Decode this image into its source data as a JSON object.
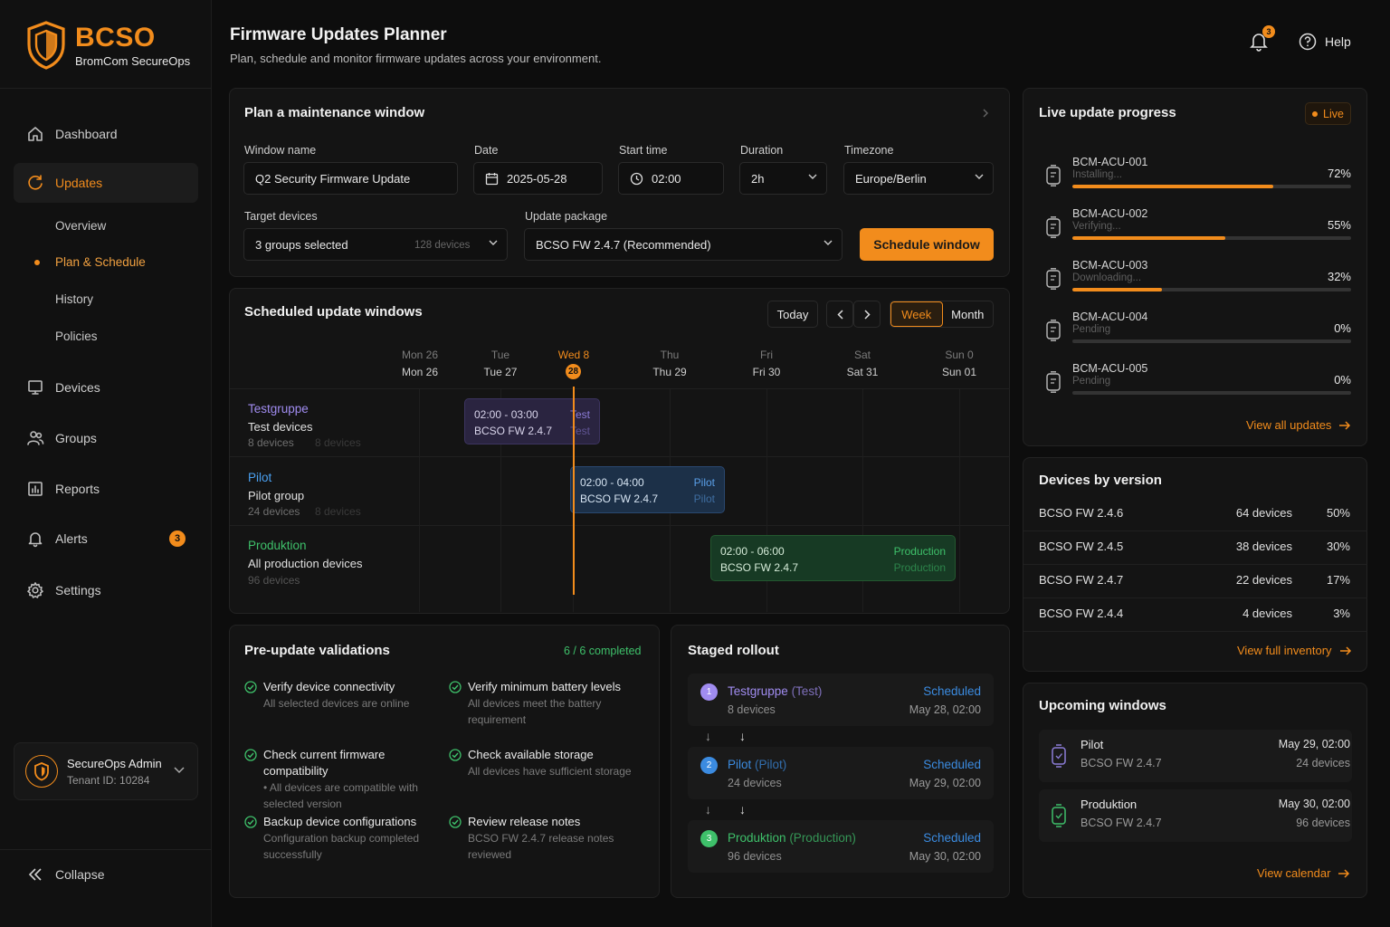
{
  "brand": {
    "name": "BCSO",
    "subtitle": "BromCom SecureOps"
  },
  "nav": {
    "dashboard": "Dashboard",
    "updates": "Updates",
    "sub_overview": "Overview",
    "sub_plan": "Plan & Schedule",
    "sub_history": "History",
    "sub_policies": "Policies",
    "devices": "Devices",
    "groups": "Groups",
    "reports": "Reports",
    "alerts": "Alerts",
    "alerts_badge": "3",
    "settings": "Settings",
    "collapse": "Collapse"
  },
  "user": {
    "name": "SecureOps Admin",
    "tenant": "Tenant ID: 10284"
  },
  "header": {
    "title": "Firmware Updates Planner",
    "subtitle": "Plan, schedule and monitor firmware updates across your environment.",
    "notif_count": "3",
    "help": "Help"
  },
  "plan": {
    "title": "Plan a maintenance window",
    "window_name_label": "Window name",
    "window_name_value": "Q2 Security Firmware Update",
    "date_label": "Date",
    "date_value": "2025-05-28",
    "start_label": "Start time",
    "start_value": "02:00",
    "duration_label": "Duration",
    "duration_value": "2h",
    "tz_label": "Timezone",
    "tz_value": "Europe/Berlin",
    "targets_label": "Target devices",
    "targets_value": "3 groups selected",
    "targets_count": "128 devices",
    "package_label": "Update package",
    "package_value": "BCSO FW 2.4.7 (Recommended)",
    "schedule_button": "Schedule window"
  },
  "calendar": {
    "title": "Scheduled update windows",
    "today": "Today",
    "view_week": "Week",
    "view_month": "Month",
    "days": [
      {
        "top": "Mon 26",
        "bottom": "Mon 26"
      },
      {
        "top": "Tue",
        "bottom": "Tue 27"
      },
      {
        "top": "Wed 8",
        "bottom": "28"
      },
      {
        "top": "Thu",
        "bottom": "Thu 29"
      },
      {
        "top": "Fri",
        "bottom": "Fri 30"
      },
      {
        "top": "Sat",
        "bottom": "Sat 31"
      },
      {
        "top": "Sun 0",
        "bottom": "Sun 01"
      }
    ],
    "groups": [
      {
        "name": "Testgruppe",
        "desc": "Test devices",
        "count": "8 devices",
        "ghost": "8 devices",
        "color": "#a08cf0"
      },
      {
        "name": "Pilot",
        "desc": "Pilot group",
        "count": "24 devices",
        "ghost": "8 devices",
        "color": "#4aa0f0"
      },
      {
        "name": "Produktion",
        "desc": "All production devices",
        "count": "96 devices",
        "ghost": "",
        "color": "#3ec06a"
      }
    ],
    "events": [
      {
        "time": "02:00 - 03:00",
        "pkg": "BCSO FW 2.4.7",
        "tag1": "Test",
        "tag2": "Test"
      },
      {
        "time": "02:00 - 04:00",
        "pkg": "BCSO FW 2.4.7",
        "tag1": "Pilot",
        "tag2": "Pilot"
      },
      {
        "time": "02:00 - 06:00",
        "pkg": "BCSO FW 2.4.7",
        "tag1": "Production",
        "tag2": "Production"
      }
    ]
  },
  "live": {
    "title": "Live update progress",
    "badge": "Live",
    "devices": [
      {
        "name": "BCM-ACU-001",
        "status": "Installing...",
        "pct": "72%",
        "value": 72
      },
      {
        "name": "BCM-ACU-002",
        "status": "Verifying...",
        "pct": "55%",
        "value": 55
      },
      {
        "name": "BCM-ACU-003",
        "status": "Downloading...",
        "pct": "32%",
        "value": 32
      },
      {
        "name": "BCM-ACU-004",
        "status": "Pending",
        "pct": "0%",
        "value": 0
      },
      {
        "name": "BCM-ACU-005",
        "status": "Pending",
        "pct": "0%",
        "value": 0
      }
    ],
    "link": "View all updates"
  },
  "versions": {
    "title": "Devices by version",
    "rows": [
      {
        "name": "BCSO FW 2.4.6",
        "count": "64 devices",
        "pct": "50%"
      },
      {
        "name": "BCSO FW 2.4.5",
        "count": "38 devices",
        "pct": "30%"
      },
      {
        "name": "BCSO FW 2.4.7",
        "count": "22 devices",
        "pct": "17%"
      },
      {
        "name": "BCSO FW 2.4.4",
        "count": "4 devices",
        "pct": "3%"
      }
    ],
    "link": "View full inventory"
  },
  "validations": {
    "title": "Pre-update validations",
    "completed": "6 / 6 completed",
    "items": [
      {
        "title": "Verify device connectivity",
        "desc": "All selected devices are online"
      },
      {
        "title": "Verify minimum battery levels",
        "desc": "All devices meet the battery requirement"
      },
      {
        "title": "Check current firmware compatibility",
        "desc": "• All devices are compatible with selected version"
      },
      {
        "title": "Check available storage",
        "desc": "All devices have sufficient storage"
      },
      {
        "title": "Backup device configurations",
        "desc": "Configuration backup completed successfully"
      },
      {
        "title": "Review release notes",
        "desc": "BCSO FW 2.4.7 release notes reviewed"
      }
    ]
  },
  "rollout": {
    "title": "Staged rollout",
    "stages": [
      {
        "num": "1",
        "name": "Testgruppe",
        "tag": "(Test)",
        "devices": "8 devices",
        "status": "Scheduled",
        "date": "May 28, 02:00",
        "color": "#a08cf0"
      },
      {
        "num": "2",
        "name": "Pilot",
        "tag": "(Pilot)",
        "devices": "24 devices",
        "status": "Scheduled",
        "date": "May 29, 02:00",
        "color": "#3b8be0"
      },
      {
        "num": "3",
        "name": "Produktion",
        "tag": "(Production)",
        "devices": "96 devices",
        "status": "Scheduled",
        "date": "May 30, 02:00",
        "color": "#3ec06a"
      }
    ]
  },
  "upcoming": {
    "title": "Upcoming windows",
    "items": [
      {
        "name": "Pilot",
        "pkg": "BCSO FW 2.4.7",
        "date": "May 29, 02:00",
        "count": "24 devices"
      },
      {
        "name": "Produktion",
        "pkg": "BCSO FW 2.4.7",
        "date": "May 30, 02:00",
        "count": "96 devices"
      }
    ],
    "link": "View calendar"
  },
  "colors": {
    "accent": "#f28c1c",
    "test": "#a08cf0",
    "pilot": "#4aa0f0",
    "production": "#3ec06a"
  }
}
